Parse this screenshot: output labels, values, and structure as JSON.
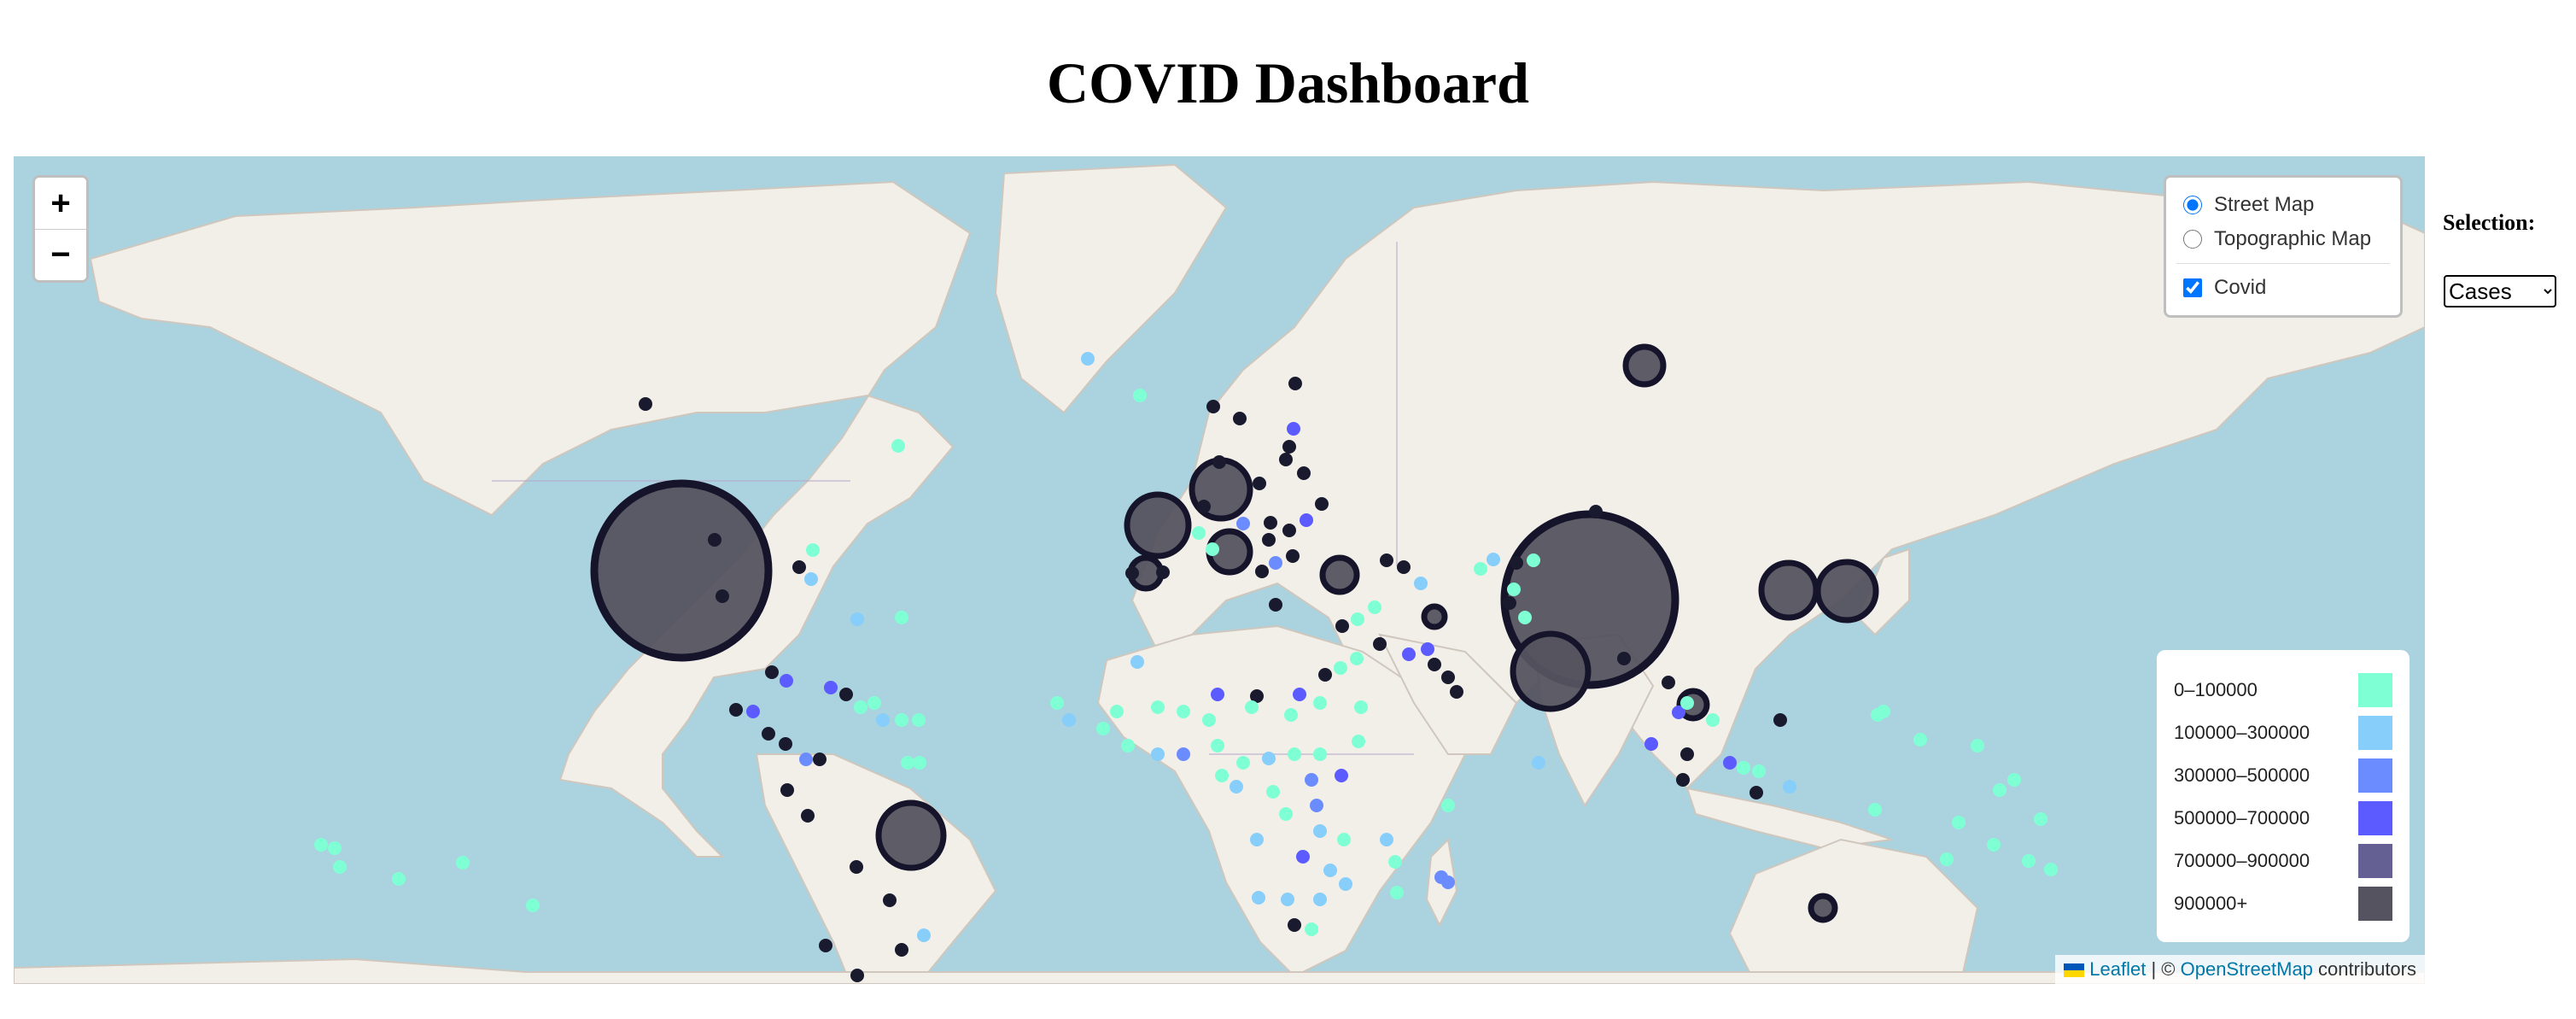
{
  "page": {
    "title": "COVID Dashboard"
  },
  "map": {
    "water_color": "#aad3df",
    "land_color": "#f2efe9",
    "zoom_in_label": "+",
    "zoom_out_label": "−",
    "layers": {
      "base": [
        {
          "label": "Street Map",
          "checked": true
        },
        {
          "label": "Topographic Map",
          "checked": false
        }
      ],
      "overlay": [
        {
          "label": "Covid",
          "checked": true
        }
      ]
    },
    "legend": [
      {
        "label": "0–100000",
        "color": "#7fffd4"
      },
      {
        "label": "100000–300000",
        "color": "#87cefa"
      },
      {
        "label": "300000–500000",
        "color": "#6b8cff"
      },
      {
        "label": "500000–700000",
        "color": "#5b5bff"
      },
      {
        "label": "700000–900000",
        "color": "#656094"
      },
      {
        "label": "900000+",
        "color": "#55535f"
      }
    ],
    "attribution": {
      "leaflet": "Leaflet",
      "separator": "| ©",
      "osm": "OpenStreetMap",
      "suffix": "contributors"
    }
  },
  "sidebar": {
    "selection_label": "Selection:",
    "selection_value": "Cases",
    "options": [
      "Cases"
    ]
  }
}
